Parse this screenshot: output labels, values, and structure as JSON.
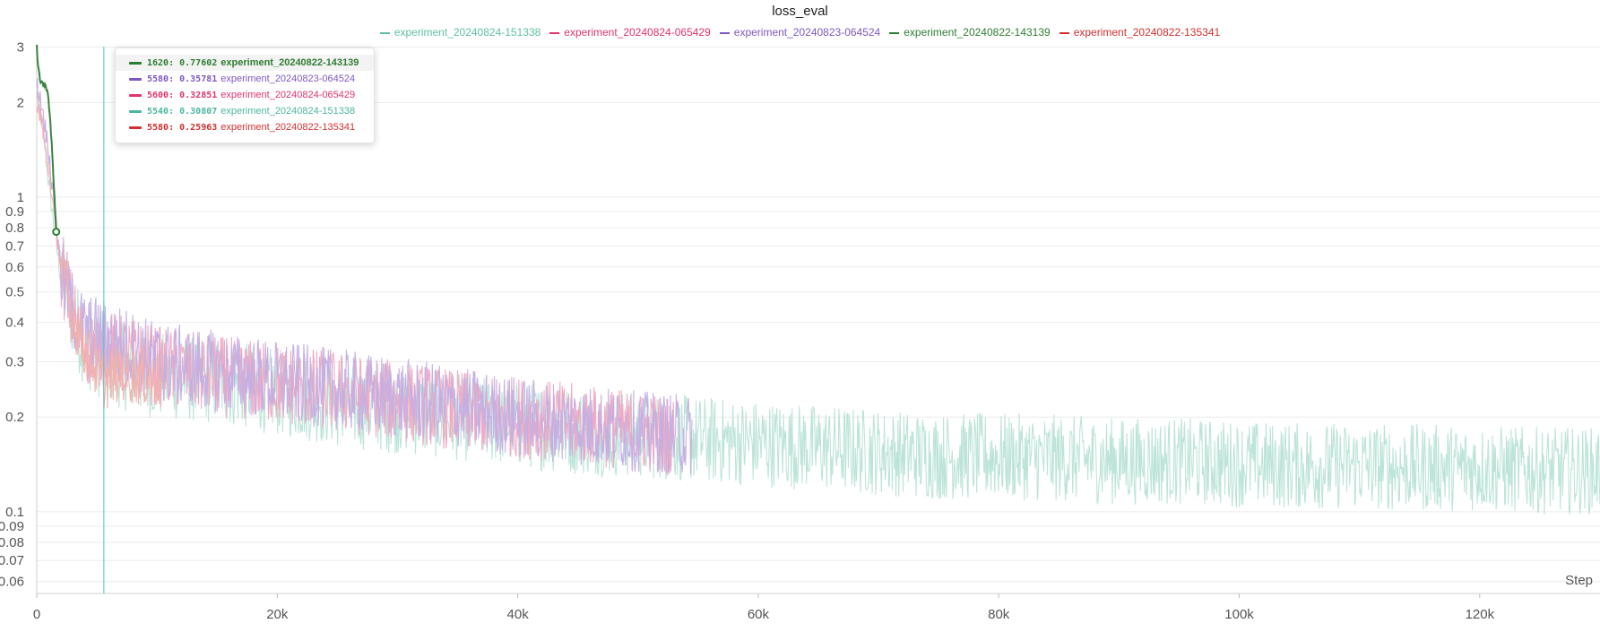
{
  "chart_data": {
    "type": "line",
    "title": "loss_eval",
    "xlabel": "Step",
    "ylabel": "",
    "y_scale": "log",
    "xlim": [
      0,
      130000
    ],
    "ylim": [
      0.055,
      3.05
    ],
    "x_ticks": [
      0,
      20000,
      40000,
      60000,
      80000,
      100000,
      120000
    ],
    "x_tick_labels": [
      "0",
      "20k",
      "40k",
      "60k",
      "80k",
      "100k",
      "120k"
    ],
    "y_ticks": [
      3,
      2,
      1,
      0.9,
      0.8,
      0.7,
      0.6,
      0.5,
      0.4,
      0.3,
      0.2,
      0.1,
      0.09,
      0.08,
      0.07,
      0.06
    ],
    "y_tick_labels": [
      "3",
      "2",
      "1",
      "0.9",
      "0.8",
      "0.7",
      "0.6",
      "0.5",
      "0.4",
      "0.3",
      "0.2",
      "0.1",
      "0.09",
      "0.08",
      "0.07",
      "0.06"
    ],
    "grid": true,
    "legend_position": "top",
    "hover_step": 5580,
    "series": [
      {
        "name": "experiment_20240824-151338",
        "color": "#5fbfa6",
        "line_color": "#b9e3d7",
        "points": [
          [
            0,
            2.2
          ],
          [
            500,
            1.65
          ],
          [
            1000,
            1.1
          ],
          [
            1500,
            0.78
          ],
          [
            2000,
            0.55
          ],
          [
            3000,
            0.42
          ],
          [
            4000,
            0.34
          ],
          [
            5540,
            0.30807
          ],
          [
            8000,
            0.28
          ],
          [
            10000,
            0.27
          ],
          [
            15000,
            0.26
          ],
          [
            20000,
            0.24
          ],
          [
            25000,
            0.22
          ],
          [
            30000,
            0.21
          ],
          [
            35000,
            0.2
          ],
          [
            40000,
            0.19
          ],
          [
            45000,
            0.18
          ],
          [
            50000,
            0.175
          ],
          [
            55000,
            0.17
          ],
          [
            60000,
            0.165
          ],
          [
            65000,
            0.16
          ],
          [
            70000,
            0.155
          ],
          [
            75000,
            0.15
          ],
          [
            80000,
            0.15
          ],
          [
            85000,
            0.148
          ],
          [
            90000,
            0.145
          ],
          [
            95000,
            0.145
          ],
          [
            100000,
            0.142
          ],
          [
            105000,
            0.14
          ],
          [
            110000,
            0.14
          ],
          [
            115000,
            0.138
          ],
          [
            120000,
            0.138
          ],
          [
            125000,
            0.135
          ],
          [
            130000,
            0.135
          ]
        ],
        "spread": 0.32
      },
      {
        "name": "experiment_20240824-065429",
        "color": "#e2336b",
        "line_color": "#f2a7bf",
        "points": [
          [
            0,
            2.0
          ],
          [
            500,
            1.7
          ],
          [
            1000,
            1.3
          ],
          [
            1500,
            0.9
          ],
          [
            2000,
            0.6
          ],
          [
            3000,
            0.42
          ],
          [
            4000,
            0.34
          ],
          [
            5600,
            0.32851
          ],
          [
            10000,
            0.29
          ],
          [
            15000,
            0.27
          ],
          [
            20000,
            0.255
          ],
          [
            25000,
            0.24
          ],
          [
            30000,
            0.225
          ],
          [
            35000,
            0.21
          ],
          [
            40000,
            0.2
          ],
          [
            45000,
            0.19
          ],
          [
            50000,
            0.18
          ],
          [
            53000,
            0.175
          ]
        ],
        "spread": 0.3
      },
      {
        "name": "experiment_20240823-064524",
        "color": "#7e57c2",
        "line_color": "#c3aee3",
        "points": [
          [
            0,
            2.3
          ],
          [
            500,
            1.9
          ],
          [
            1000,
            1.4
          ],
          [
            1500,
            0.9
          ],
          [
            2000,
            0.6
          ],
          [
            3000,
            0.43
          ],
          [
            4000,
            0.37
          ],
          [
            5580,
            0.35781
          ],
          [
            10000,
            0.3
          ],
          [
            15000,
            0.28
          ],
          [
            20000,
            0.26
          ],
          [
            25000,
            0.245
          ],
          [
            30000,
            0.23
          ],
          [
            35000,
            0.215
          ],
          [
            40000,
            0.2
          ],
          [
            45000,
            0.19
          ],
          [
            50000,
            0.18
          ],
          [
            54500,
            0.175
          ]
        ],
        "spread": 0.3
      },
      {
        "name": "experiment_20240822-143139",
        "color": "#2e7d32",
        "line_color": "#2e7d32",
        "points": [
          [
            0,
            3.0
          ],
          [
            100,
            2.6
          ],
          [
            300,
            2.35
          ],
          [
            500,
            2.3
          ],
          [
            700,
            2.25
          ],
          [
            900,
            2.2
          ],
          [
            1100,
            1.8
          ],
          [
            1300,
            1.35
          ],
          [
            1500,
            0.95
          ],
          [
            1620,
            0.77602
          ]
        ],
        "spread": 0.07
      },
      {
        "name": "experiment_20240822-135341",
        "color": "#d32f2f",
        "line_color": "#f0b1ab",
        "points": [
          [
            0,
            2.1
          ],
          [
            500,
            1.6
          ],
          [
            1000,
            1.2
          ],
          [
            1500,
            0.85
          ],
          [
            2000,
            0.6
          ],
          [
            3000,
            0.42
          ],
          [
            4000,
            0.33
          ],
          [
            5580,
            0.25963
          ],
          [
            7000,
            0.28
          ],
          [
            8500,
            0.27
          ],
          [
            10500,
            0.26
          ]
        ],
        "spread": 0.22
      }
    ],
    "tooltip": {
      "rows": [
        {
          "step": "1620",
          "value": "0.77602",
          "name": "experiment_20240822-143139",
          "color": "#2e7d32",
          "highlight": true
        },
        {
          "step": "5580",
          "value": "0.35781",
          "name": "experiment_20240823-064524",
          "color": "#7e57c2",
          "highlight": false
        },
        {
          "step": "5600",
          "value": "0.32851",
          "name": "experiment_20240824-065429",
          "color": "#e2336b",
          "highlight": false
        },
        {
          "step": "5540",
          "value": "0.30807",
          "name": "experiment_20240824-151338",
          "color": "#4db6a0",
          "highlight": false
        },
        {
          "step": "5580",
          "value": "0.25963",
          "name": "experiment_20240822-135341",
          "color": "#d32f2f",
          "highlight": false
        }
      ]
    },
    "hover_point": {
      "x": 1620,
      "y": 0.77602,
      "color": "#2e7d32"
    }
  }
}
